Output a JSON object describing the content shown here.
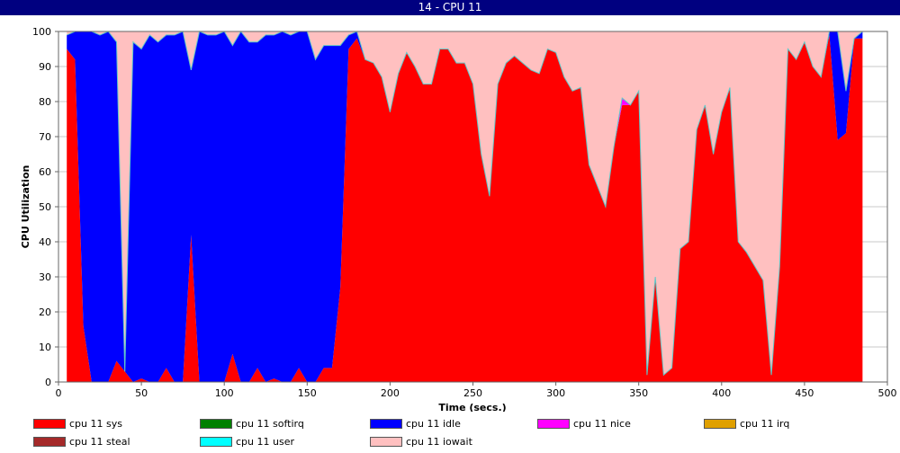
{
  "window": {
    "title": "14 - CPU 11"
  },
  "chart_data": {
    "type": "area",
    "stacked": true,
    "xlabel": "Time (secs.)",
    "ylabel": "CPU Utilization",
    "xlim": [
      0,
      500
    ],
    "ylim": [
      0,
      100
    ],
    "xticks": [
      0,
      50,
      100,
      150,
      200,
      250,
      300,
      350,
      400,
      450,
      500
    ],
    "yticks": [
      0,
      10,
      20,
      30,
      40,
      50,
      60,
      70,
      80,
      90,
      100
    ],
    "grid": true,
    "legend_position": "bottom",
    "x": [
      5,
      10,
      15,
      20,
      25,
      30,
      35,
      40,
      45,
      50,
      55,
      60,
      65,
      70,
      75,
      80,
      85,
      90,
      95,
      100,
      105,
      110,
      115,
      120,
      125,
      130,
      135,
      140,
      145,
      150,
      155,
      160,
      165,
      170,
      175,
      180,
      185,
      190,
      195,
      200,
      205,
      210,
      215,
      220,
      225,
      230,
      235,
      240,
      245,
      250,
      255,
      260,
      265,
      270,
      275,
      280,
      285,
      290,
      295,
      300,
      305,
      310,
      315,
      320,
      325,
      330,
      335,
      340,
      345,
      350,
      355,
      360,
      365,
      370,
      375,
      380,
      385,
      390,
      395,
      400,
      405,
      410,
      415,
      420,
      425,
      430,
      435,
      440,
      445,
      450,
      455,
      460,
      465,
      470,
      475,
      480,
      485
    ],
    "series": [
      {
        "name": "cpu 11 sys",
        "color": "#ff0000",
        "values": [
          95,
          92,
          16,
          0,
          0,
          0,
          6,
          3,
          0,
          1,
          0,
          0,
          4,
          0,
          0,
          42,
          0,
          0,
          0,
          0,
          8,
          0,
          0,
          4,
          0,
          1,
          0,
          0,
          4,
          0,
          0,
          4,
          4,
          27,
          95,
          98,
          92,
          91,
          87,
          77,
          88,
          94,
          90,
          85,
          85,
          95,
          95,
          91,
          91,
          85,
          65,
          53,
          85,
          91,
          93,
          91,
          89,
          88,
          95,
          94,
          87,
          83,
          84,
          62,
          56,
          50,
          67,
          79,
          79,
          83,
          2,
          30,
          2,
          4,
          38,
          40,
          72,
          79,
          65,
          77,
          84,
          40,
          37,
          33,
          29,
          2,
          33,
          95,
          92,
          97,
          90,
          87,
          99,
          69,
          71,
          98,
          98
        ]
      },
      {
        "name": "cpu 11 softirq",
        "color": "#008000",
        "values": [
          0,
          0,
          0,
          0,
          0,
          0,
          0,
          0,
          0,
          0,
          0,
          0,
          0,
          0,
          0,
          0,
          0,
          0,
          0,
          0,
          0,
          0,
          0,
          0,
          0,
          0,
          0,
          0,
          0,
          0,
          0,
          0,
          0,
          0,
          0,
          0,
          0,
          0,
          0,
          0,
          0,
          0,
          0,
          0,
          0,
          0,
          0,
          0,
          0,
          0,
          0,
          0,
          0,
          0,
          0,
          0,
          0,
          0,
          0,
          0,
          0,
          0,
          0,
          0,
          0,
          0,
          0,
          0,
          0,
          0,
          0,
          0,
          0,
          0,
          0,
          0,
          0,
          0,
          0,
          0,
          0,
          0,
          0,
          0,
          0,
          0,
          0,
          0,
          0,
          0,
          0,
          0,
          0,
          0,
          0,
          0,
          0
        ]
      },
      {
        "name": "cpu 11 idle",
        "color": "#0000ff",
        "values": [
          4,
          8,
          84,
          100,
          99,
          100,
          91,
          0,
          97,
          94,
          99,
          97,
          95,
          99,
          100,
          47,
          100,
          99,
          99,
          100,
          88,
          100,
          97,
          93,
          99,
          98,
          100,
          99,
          96,
          100,
          92,
          92,
          92,
          69,
          4,
          2,
          0,
          0,
          0,
          0,
          0,
          0,
          0,
          0,
          0,
          0,
          0,
          0,
          0,
          0,
          0,
          0,
          0,
          0,
          0,
          0,
          0,
          0,
          0,
          0,
          0,
          0,
          0,
          0,
          0,
          0,
          0,
          0,
          0,
          0,
          0,
          0,
          0,
          0,
          0,
          0,
          0,
          0,
          0,
          0,
          0,
          0,
          0,
          0,
          0,
          0,
          0,
          0,
          0,
          0,
          0,
          0,
          1,
          31,
          12,
          0,
          2
        ]
      },
      {
        "name": "cpu 11 nice",
        "color": "#ff00ff",
        "values": [
          0,
          0,
          0,
          0,
          0,
          0,
          0,
          0,
          0,
          0,
          0,
          0,
          0,
          0,
          0,
          0,
          0,
          0,
          0,
          0,
          0,
          0,
          0,
          0,
          0,
          0,
          0,
          0,
          0,
          0,
          0,
          0,
          0,
          0,
          0,
          0,
          0,
          0,
          0,
          0,
          0,
          0,
          0,
          0,
          0,
          0,
          0,
          0,
          0,
          0,
          0,
          0,
          0,
          0,
          0,
          0,
          0,
          0,
          0,
          0,
          0,
          0,
          0,
          0,
          0,
          0,
          0,
          2,
          0,
          0,
          0,
          0,
          0,
          0,
          0,
          0,
          0,
          0,
          0,
          0,
          0,
          0,
          0,
          0,
          0,
          0,
          0,
          0,
          0,
          0,
          0,
          0,
          0,
          0,
          0,
          0,
          0
        ]
      },
      {
        "name": "cpu 11 irq",
        "color": "#e0a000",
        "values": [
          0,
          0,
          0,
          0,
          0,
          0,
          0,
          0,
          0,
          0,
          0,
          0,
          0,
          0,
          0,
          0,
          0,
          0,
          0,
          0,
          0,
          0,
          0,
          0,
          0,
          0,
          0,
          0,
          0,
          0,
          0,
          0,
          0,
          0,
          0,
          0,
          0,
          0,
          0,
          0,
          0,
          0,
          0,
          0,
          0,
          0,
          0,
          0,
          0,
          0,
          0,
          0,
          0,
          0,
          0,
          0,
          0,
          0,
          0,
          0,
          0,
          0,
          0,
          0,
          0,
          0,
          0,
          0,
          0,
          0,
          0,
          0,
          0,
          0,
          0,
          0,
          0,
          0,
          0,
          0,
          0,
          0,
          0,
          0,
          0,
          0,
          0,
          0,
          0,
          0,
          0,
          0,
          0,
          0,
          0,
          0,
          0
        ]
      },
      {
        "name": "cpu 11 steal",
        "color": "#a52a2a",
        "values": [
          0,
          0,
          0,
          0,
          0,
          0,
          0,
          0,
          0,
          0,
          0,
          0,
          0,
          0,
          0,
          0,
          0,
          0,
          0,
          0,
          0,
          0,
          0,
          0,
          0,
          0,
          0,
          0,
          0,
          0,
          0,
          0,
          0,
          0,
          0,
          0,
          0,
          0,
          0,
          0,
          0,
          0,
          0,
          0,
          0,
          0,
          0,
          0,
          0,
          0,
          0,
          0,
          0,
          0,
          0,
          0,
          0,
          0,
          0,
          0,
          0,
          0,
          0,
          0,
          0,
          0,
          0,
          0,
          0,
          0,
          0,
          0,
          0,
          0,
          0,
          0,
          0,
          0,
          0,
          0,
          0,
          0,
          0,
          0,
          0,
          0,
          0,
          0,
          0,
          0,
          0,
          0,
          0,
          0,
          0,
          0,
          0
        ]
      },
      {
        "name": "cpu 11 user",
        "color": "#00ffff",
        "values": [
          0,
          0,
          0,
          0,
          0,
          0,
          0,
          0,
          0,
          0,
          0,
          0,
          0,
          0,
          0,
          0,
          0,
          0,
          0,
          0,
          0,
          0,
          0,
          0,
          0,
          0,
          0,
          0,
          0,
          0,
          0,
          0,
          0,
          0,
          0,
          0,
          0,
          0,
          0,
          0,
          0,
          0,
          0,
          0,
          0,
          0,
          0,
          0,
          0,
          0,
          0,
          0,
          0,
          0,
          0,
          0,
          0,
          0,
          0,
          0,
          0,
          0,
          0,
          0,
          0,
          0,
          0,
          0,
          0,
          0,
          0,
          0,
          0,
          0,
          0,
          0,
          0,
          0,
          0,
          0,
          0,
          0,
          0,
          0,
          0,
          0,
          0,
          0,
          0,
          0,
          0,
          0,
          0,
          0,
          0,
          0,
          0
        ]
      },
      {
        "name": "cpu 11 iowait",
        "color": "#ffc0c0",
        "values": [
          1,
          0,
          0,
          0,
          1,
          0,
          3,
          97,
          3,
          5,
          1,
          3,
          1,
          1,
          0,
          11,
          0,
          1,
          1,
          0,
          4,
          0,
          3,
          3,
          1,
          1,
          0,
          1,
          0,
          0,
          8,
          4,
          4,
          4,
          1,
          0,
          8,
          9,
          13,
          23,
          12,
          6,
          10,
          15,
          15,
          5,
          5,
          9,
          9,
          15,
          35,
          47,
          15,
          9,
          7,
          9,
          11,
          12,
          5,
          6,
          13,
          17,
          16,
          38,
          44,
          50,
          33,
          19,
          21,
          17,
          98,
          70,
          98,
          96,
          62,
          60,
          28,
          21,
          35,
          23,
          16,
          60,
          63,
          67,
          71,
          98,
          67,
          5,
          8,
          3,
          10,
          13,
          0,
          0,
          17,
          2,
          0
        ]
      }
    ]
  }
}
